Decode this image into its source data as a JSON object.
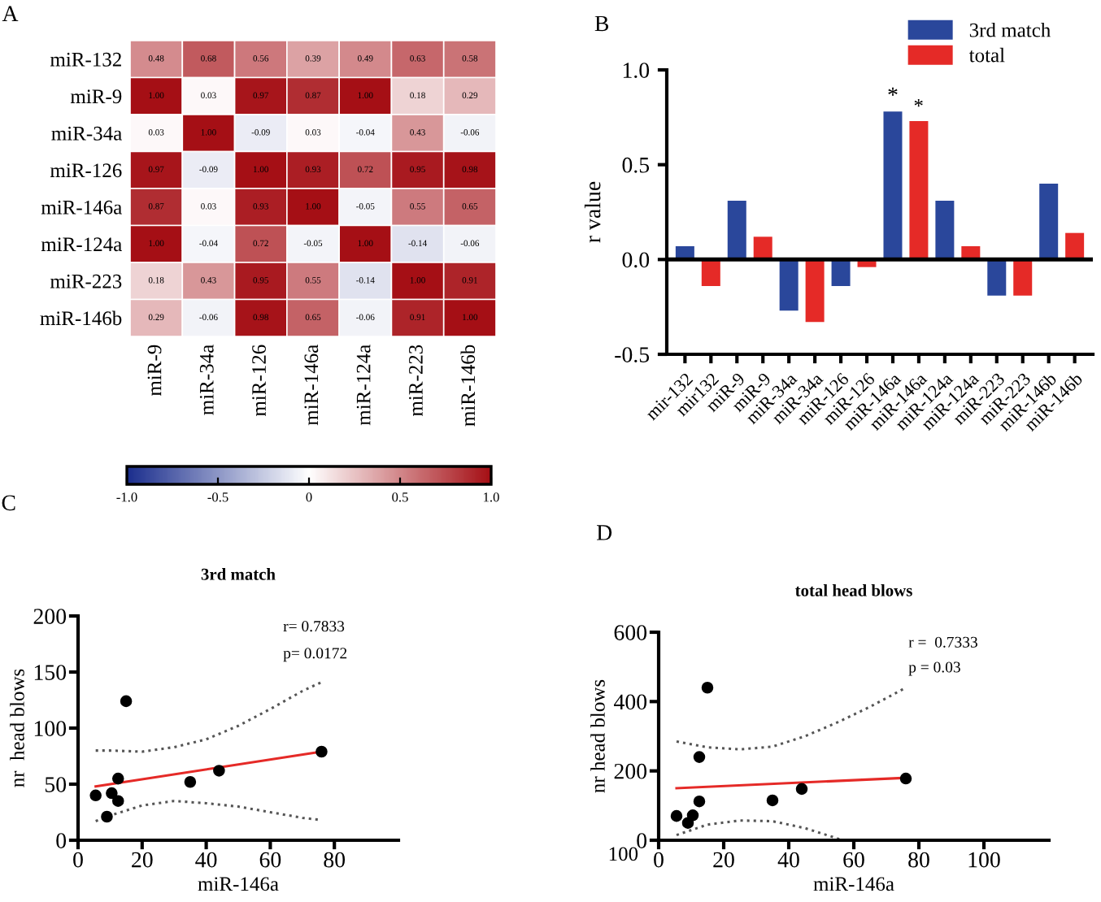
{
  "chart_data": [
    {
      "type": "heatmap",
      "annotations": [
        "A"
      ],
      "categories": [
        "miR-9",
        "miR-34a",
        "miR-126",
        "miR-146a",
        "miR-124a",
        "miR-223",
        "miR-146b"
      ],
      "y_categories": [
        "miR-132",
        "miR-9",
        "miR-34a",
        "miR-126",
        "miR-146a",
        "miR-124a",
        "miR-223",
        "miR-146b"
      ],
      "cells": [
        [
          0.48,
          0.68,
          0.56,
          0.39,
          0.49,
          0.63,
          0.58
        ],
        [
          1.0,
          0.03,
          0.97,
          0.87,
          1.0,
          0.18,
          0.29
        ],
        [
          0.03,
          1.0,
          -0.09,
          0.03,
          -0.04,
          0.43,
          -0.06
        ],
        [
          0.97,
          -0.09,
          1.0,
          0.93,
          0.72,
          0.95,
          0.98
        ],
        [
          0.87,
          0.03,
          0.93,
          1.0,
          -0.05,
          0.55,
          0.65
        ],
        [
          1.0,
          -0.04,
          0.72,
          -0.05,
          1.0,
          -0.14,
          -0.06
        ],
        [
          0.18,
          0.43,
          0.95,
          0.55,
          -0.14,
          1.0,
          0.91
        ],
        [
          0.29,
          -0.06,
          0.98,
          0.65,
          -0.06,
          0.91,
          1.0
        ]
      ],
      "cell_labels": [
        [
          "0.48",
          "0.68",
          "0.56",
          "0.39",
          "0.49",
          "0.63",
          "0.58"
        ],
        [
          "1.00",
          "0.03",
          "0.97",
          "0.87",
          "1.00",
          "0.18",
          "0.29"
        ],
        [
          "0.03",
          "1.00",
          "-0.09",
          "0.03",
          "-0.04",
          "0.43",
          "-0.06"
        ],
        [
          "0.97",
          "-0.09",
          "1.00",
          "0.93",
          "0.72",
          "0.95",
          "0.98"
        ],
        [
          "0.87",
          "0.03",
          "0.93",
          "1.00",
          "-0.05",
          "0.55",
          "0.65"
        ],
        [
          "1.00",
          "-0.04",
          "0.72",
          "-0.05",
          "1.00",
          "-0.14",
          "-0.06"
        ],
        [
          "0.18",
          "0.43",
          "0.95",
          "0.55",
          "-0.14",
          "1.00",
          "0.91"
        ],
        [
          "0.29",
          "-0.06",
          "0.98",
          "0.65",
          "-0.06",
          "0.91",
          "1.00"
        ]
      ],
      "clim": [
        -1,
        1
      ],
      "cticks": [
        {
          "value": -1,
          "label": "-1.0"
        },
        -0.5,
        0,
        0.5,
        {
          "value": 1,
          "label": "1.0"
        }
      ]
    },
    {
      "type": "bar",
      "ylabel": "r value",
      "annotations": [
        "B",
        {
          "text": "*",
          "x": "miR-146a",
          "y": 0.78
        },
        "*"
      ],
      "categories": [
        "mir-132",
        "mir132",
        "miR-9",
        "miR-9",
        "miR-34a",
        "miR-34a",
        "miR-126",
        "miR-126",
        "miR-146a",
        "miR-146a",
        "miR-124a",
        "miR-124a",
        "miR-223",
        "miR-223",
        "miR-146b",
        "miR-146b"
      ],
      "series": [
        {
          "name": "3rd match",
          "color": "#2a479b",
          "values": [
            0.07,
            null,
            0.31,
            null,
            -0.27,
            null,
            -0.14,
            null,
            0.78,
            null,
            0.31,
            null,
            -0.19,
            null,
            0.4,
            null
          ]
        },
        {
          "name": "total",
          "color": "#e52a27",
          "values": [
            null,
            -0.14,
            null,
            0.12,
            null,
            -0.33,
            null,
            -0.04,
            null,
            0.73,
            null,
            0.07,
            null,
            -0.19,
            null,
            0.14
          ]
        }
      ],
      "ylim": [
        -0.5,
        1.0
      ],
      "yticks": [
        -0.5,
        {
          "value": 0,
          "label": "0.0"
        },
        0.5,
        {
          "value": 1,
          "label": "1.0"
        }
      ],
      "ref_lines": [
        {
          "axis": "y",
          "value": 0,
          "color": "#000000"
        }
      ],
      "legend": "top right"
    },
    {
      "type": "scatter",
      "title": "3rd match",
      "xlabel": "miR-146a",
      "ylabel": "nr  head blows",
      "annotations": [
        "C",
        "r= 0.7833",
        "p= 0.0172"
      ],
      "x": [
        5.5,
        9,
        10.5,
        12.5,
        12.5,
        15,
        35,
        44,
        76
      ],
      "series": [
        {
          "color": "#000000",
          "marker": "circle",
          "values": [
            40,
            21,
            42,
            35,
            55,
            124,
            52,
            62,
            79
          ]
        },
        {
          "type": "line",
          "color": "#e52a27",
          "line_style": "solid",
          "x": [
            5.5,
            76
          ],
          "values": [
            48,
            79
          ]
        },
        {
          "type": "line",
          "color": "#555555",
          "line_style": "dotted",
          "x": [
            5.5,
            10,
            20,
            30,
            40,
            50,
            60,
            70,
            76
          ],
          "values": [
            80,
            80,
            79,
            83,
            90,
            102,
            117,
            133,
            141
          ]
        },
        {
          "type": "line",
          "color": "#555555",
          "line_style": "dotted",
          "x": [
            5.5,
            10,
            20,
            30,
            40,
            50,
            60,
            70,
            76
          ],
          "values": [
            17,
            22,
            31,
            35,
            33,
            30,
            25,
            20,
            18
          ]
        }
      ],
      "xlim": [
        0,
        100
      ],
      "xticks": [
        0,
        20,
        40,
        60,
        80
      ],
      "ylim": [
        0,
        200
      ],
      "yticks": [
        0,
        50,
        100,
        150,
        200
      ]
    },
    {
      "type": "scatter",
      "title": "total head blows",
      "xlabel": "miR-146a",
      "ylabel": "nr head blows",
      "annotations": [
        "D",
        "r =  0.7333",
        "p = 0.03",
        "100"
      ],
      "x": [
        5.5,
        9,
        10.5,
        12.5,
        12.5,
        15,
        35,
        44,
        76
      ],
      "series": [
        {
          "color": "#000000",
          "marker": "circle",
          "values": [
            70,
            50,
            72,
            112,
            240,
            440,
            115,
            148,
            178
          ]
        },
        {
          "type": "line",
          "color": "#e52a27",
          "line_style": "solid",
          "x": [
            5.5,
            76
          ],
          "values": [
            150,
            180
          ]
        },
        {
          "type": "line",
          "color": "#555555",
          "line_style": "dotted",
          "x": [
            5.5,
            15,
            25,
            35,
            45,
            55,
            65,
            76
          ],
          "values": [
            285,
            268,
            262,
            270,
            300,
            340,
            385,
            440
          ]
        },
        {
          "type": "line",
          "color": "#555555",
          "line_style": "dotted",
          "x": [
            5.5,
            15,
            25,
            35,
            45,
            55,
            57
          ],
          "values": [
            15,
            45,
            57,
            55,
            35,
            5,
            0
          ]
        }
      ],
      "xlim": [
        0,
        120
      ],
      "xticks": [
        0,
        20,
        40,
        60,
        80,
        100
      ],
      "ylim": [
        0,
        600
      ],
      "yticks": [
        0,
        200,
        400,
        600
      ]
    }
  ]
}
